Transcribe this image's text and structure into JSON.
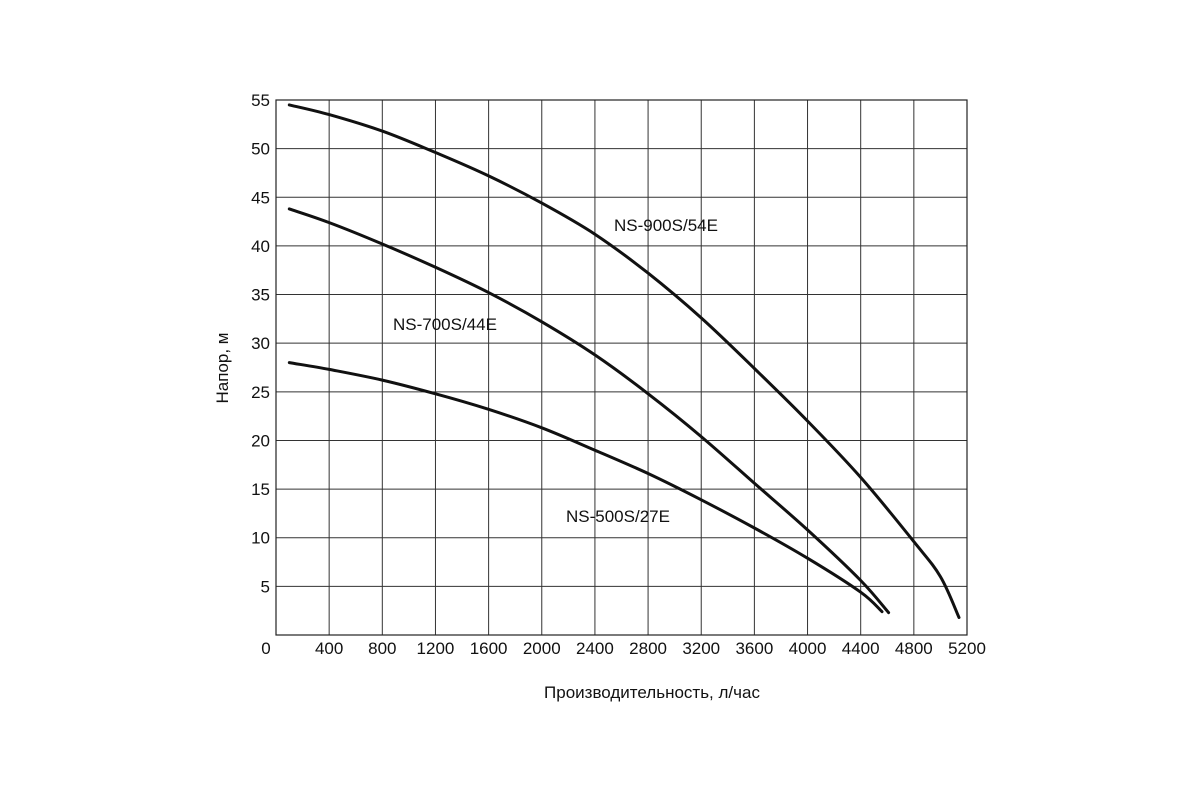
{
  "chart_data": {
    "type": "line",
    "xlabel": "Производительность, л/час",
    "ylabel": "Напор, м",
    "xlim": [
      0,
      5200
    ],
    "ylim": [
      0,
      55
    ],
    "x_ticks": [
      400,
      800,
      1200,
      1600,
      2000,
      2400,
      2800,
      3200,
      3600,
      4000,
      4400,
      4800,
      5200
    ],
    "y_ticks": [
      5,
      10,
      15,
      20,
      25,
      30,
      35,
      40,
      45,
      50,
      55
    ],
    "origin_label": "0",
    "grid": true,
    "line_color": "#111111",
    "series": [
      {
        "name": "NS-900S/54E",
        "points": [
          [
            100,
            54.5
          ],
          [
            400,
            53.5
          ],
          [
            800,
            51.8
          ],
          [
            1200,
            49.6
          ],
          [
            1600,
            47.2
          ],
          [
            2000,
            44.4
          ],
          [
            2400,
            41.2
          ],
          [
            2800,
            37.2
          ],
          [
            3200,
            32.6
          ],
          [
            3600,
            27.4
          ],
          [
            4000,
            22.0
          ],
          [
            4400,
            16.2
          ],
          [
            4800,
            9.6
          ],
          [
            5000,
            6.0
          ],
          [
            5140,
            1.8
          ]
        ]
      },
      {
        "name": "NS-700S/44E",
        "points": [
          [
            100,
            43.8
          ],
          [
            400,
            42.4
          ],
          [
            800,
            40.2
          ],
          [
            1200,
            37.8
          ],
          [
            1600,
            35.2
          ],
          [
            2000,
            32.2
          ],
          [
            2400,
            28.8
          ],
          [
            2800,
            24.8
          ],
          [
            3200,
            20.4
          ],
          [
            3600,
            15.6
          ],
          [
            4000,
            10.8
          ],
          [
            4400,
            5.6
          ],
          [
            4610,
            2.3
          ]
        ]
      },
      {
        "name": "NS-500S/27E",
        "points": [
          [
            100,
            28.0
          ],
          [
            400,
            27.3
          ],
          [
            800,
            26.2
          ],
          [
            1200,
            24.8
          ],
          [
            1600,
            23.2
          ],
          [
            2000,
            21.3
          ],
          [
            2400,
            19.0
          ],
          [
            2800,
            16.6
          ],
          [
            3200,
            13.9
          ],
          [
            3600,
            11.0
          ],
          [
            4000,
            7.9
          ],
          [
            4400,
            4.4
          ],
          [
            4560,
            2.4
          ]
        ]
      }
    ]
  }
}
